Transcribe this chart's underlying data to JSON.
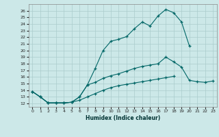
{
  "title": "",
  "xlabel": "Humidex (Indice chaleur)",
  "ylabel": "",
  "background_color": "#cce8e8",
  "grid_color": "#aacccc",
  "line_color": "#006666",
  "xlim": [
    -0.5,
    23.5
  ],
  "ylim": [
    11.5,
    27
  ],
  "xticks": [
    0,
    1,
    2,
    3,
    4,
    5,
    6,
    7,
    8,
    9,
    10,
    11,
    12,
    13,
    14,
    15,
    16,
    17,
    18,
    19,
    20,
    21,
    22,
    23
  ],
  "yticks": [
    12,
    13,
    14,
    15,
    16,
    17,
    18,
    19,
    20,
    21,
    22,
    23,
    24,
    25,
    26
  ],
  "curve1_x": [
    0,
    1,
    2,
    3,
    4,
    5,
    6,
    7,
    8,
    9,
    10,
    11,
    12,
    13,
    14,
    15,
    16,
    17,
    18,
    19,
    20
  ],
  "curve1_y": [
    13.8,
    13.0,
    12.1,
    12.1,
    12.1,
    12.2,
    13.0,
    14.8,
    17.3,
    20.0,
    21.4,
    21.7,
    22.1,
    23.3,
    24.3,
    23.7,
    25.2,
    26.2,
    25.7,
    24.3,
    20.7
  ],
  "curve2_x": [
    0,
    1,
    2,
    3,
    4,
    5,
    6,
    7,
    8,
    9,
    10,
    11,
    12,
    13,
    14,
    15,
    16,
    17,
    18,
    19,
    20,
    21,
    22,
    23
  ],
  "curve2_y": [
    13.8,
    13.0,
    12.1,
    12.1,
    12.1,
    12.2,
    13.0,
    14.8,
    15.2,
    15.8,
    16.2,
    16.5,
    16.9,
    17.3,
    17.6,
    17.8,
    18.0,
    19.0,
    18.3,
    17.5,
    15.5,
    15.3,
    15.2,
    15.4
  ],
  "curve3_x": [
    0,
    1,
    2,
    3,
    4,
    5,
    6,
    7,
    8,
    9,
    10,
    11,
    12,
    13,
    14,
    15,
    16,
    17,
    18
  ],
  "curve3_y": [
    13.8,
    13.0,
    12.1,
    12.1,
    12.1,
    12.2,
    12.5,
    13.0,
    13.5,
    14.0,
    14.4,
    14.7,
    14.9,
    15.1,
    15.3,
    15.5,
    15.7,
    15.9,
    16.1
  ]
}
